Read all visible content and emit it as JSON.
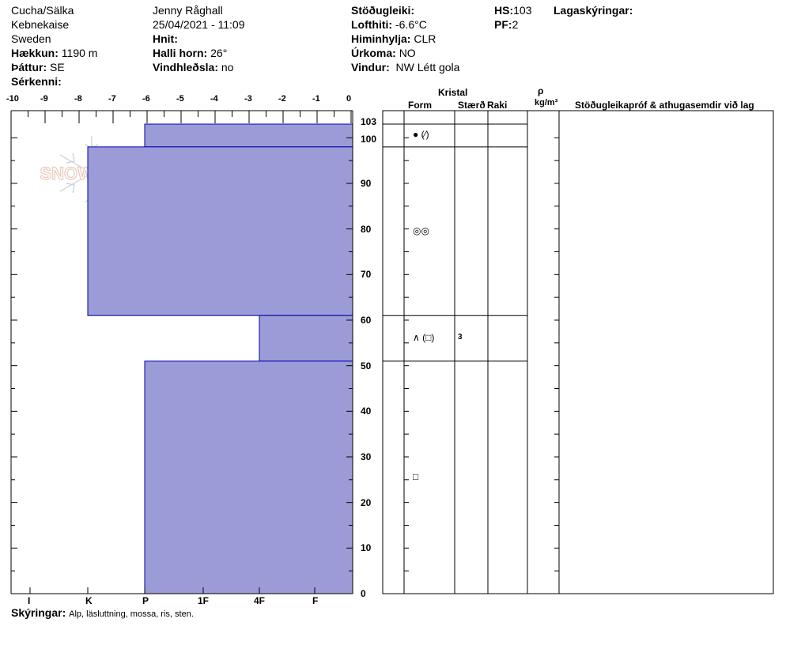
{
  "header": {
    "col1": {
      "location": "Cucha/Sälka",
      "area": "Kebnekaise",
      "country": "Sweden",
      "elevation_label": "Hækkun:",
      "elevation_value": "1190 m",
      "aspect_label": "Þáttur:",
      "aspect_value": "SE",
      "features_label": "Sérkenni:"
    },
    "col2": {
      "observer": "Jenny Råghall",
      "datetime": "25/04/2021 - 11:09",
      "coords_label": "Hnit:",
      "slope_label": "Halli horn:",
      "slope_value": "26°",
      "wind_loading_label": "Vindhleðsla:",
      "wind_loading_value": "no"
    },
    "col3": {
      "stability_label": "Stöðugleiki:",
      "air_temp_label": "Lofthiti:",
      "air_temp_value": "-6.6°C",
      "sky_label": "Himinhylja:",
      "sky_value": "CLR",
      "precip_label": "Úrkoma:",
      "precip_value": "NO",
      "wind_label": "Vindur:",
      "wind_value": "NW Létt gola"
    },
    "col4": {
      "hs_label": "HS:",
      "hs_value": "103",
      "pf_label": "PF:",
      "pf_value": "2"
    },
    "layers_title": "Lagaskýringar:"
  },
  "logo_text": "SNOWPILOT",
  "temperature_axis": {
    "ticks": [
      "-10",
      "-9",
      "-8",
      "-7",
      "-6",
      "-5",
      "-4",
      "-3",
      "-2",
      "-1",
      "0"
    ]
  },
  "hardness_axis": {
    "labels": [
      "I",
      "K",
      "P",
      "1F",
      "4F",
      "F"
    ]
  },
  "height_axis": {
    "labels": [
      "103",
      "100",
      "90",
      "80",
      "70",
      "60",
      "50",
      "40",
      "30",
      "20",
      "10",
      "0"
    ]
  },
  "table_headers": {
    "crystal": "Kristal",
    "form": "Form",
    "size": "Stærð",
    "moisture": "Raki",
    "density_symbol": "ρ",
    "density_unit": "kg/m³",
    "comments": "Stöðugleikapróf & athugasemdir við lag"
  },
  "chart_data": {
    "type": "bar",
    "height_max": 103,
    "hardness_scale": [
      "I",
      "K",
      "P",
      "1F",
      "4F",
      "F"
    ],
    "layers": [
      {
        "bottom": 98,
        "top": 103,
        "hardness": "P",
        "form": "● (⁄)",
        "size": ""
      },
      {
        "bottom": 61,
        "top": 98,
        "hardness": "K-",
        "form": "◎◎",
        "size": ""
      },
      {
        "bottom": 51,
        "top": 61,
        "hardness": "4F",
        "form": "∧ (□)",
        "size": "3"
      },
      {
        "bottom": 0,
        "top": 51,
        "hardness": "P",
        "form": "□",
        "size": ""
      }
    ]
  },
  "colors": {
    "layer_fill": "#9b9bd7",
    "layer_stroke": "#0000aa"
  },
  "footer": {
    "label": "Skýringar:",
    "text": "Alp, läsluttning, mossa, ris, sten."
  }
}
